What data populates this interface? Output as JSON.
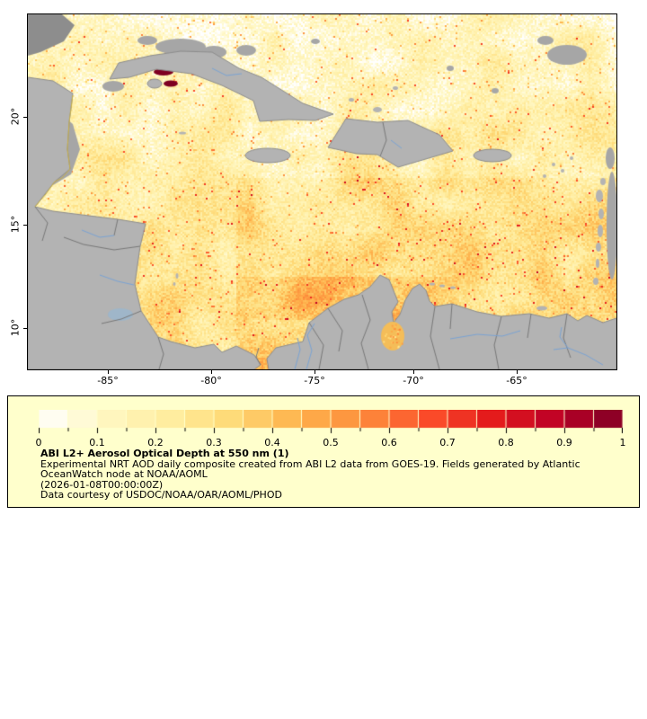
{
  "map": {
    "y_axis": {
      "ticks": [
        "20°",
        "15°",
        "10°"
      ]
    },
    "x_axis": {
      "ticks": [
        "-85°",
        "-80°",
        "-75°",
        "-70°",
        "-65°"
      ]
    }
  },
  "legend": {
    "title": "ABI L2+ Aerosol Optical Depth at 550 nm (1)",
    "description_lines": [
      "Experimental NRT AOD daily composite created from ABI L2 data from GOES-19. Fields generated by Atlantic",
      "OceanWatch node at NOAA/AOML"
    ],
    "timestamp": "(2026-01-08T00:00:00Z)",
    "credit": "Data courtesy of USDOC/NOAA/OAR/AOML/PHOD",
    "colorbar": {
      "min": 0,
      "max": 1,
      "ticks": [
        "0",
        "0.1",
        "0.2",
        "0.3",
        "0.4",
        "0.5",
        "0.6",
        "0.7",
        "0.8",
        "0.9",
        "1"
      ]
    }
  },
  "colors": {
    "page_bg": "#ffffff",
    "legend_bg": "#ffffcc",
    "land": "#b3b3b3",
    "no_data": "#a6a6a6",
    "dark_gray": "#8d8d8d",
    "border_line": "#787878",
    "river": "#7aa3d4",
    "coast_accent": "#c9b14a",
    "high_aod_spot": "#7e0022",
    "lake_fill": "#f4bd58",
    "lake_nicaragua": "#9fb6c9",
    "colormap": [
      "#ffffff",
      "#fff7c2",
      "#ffeda0",
      "#fed976",
      "#feb24c",
      "#fd8d3c",
      "#fc4e2a",
      "#e31a1c",
      "#bd0026",
      "#800026"
    ]
  }
}
